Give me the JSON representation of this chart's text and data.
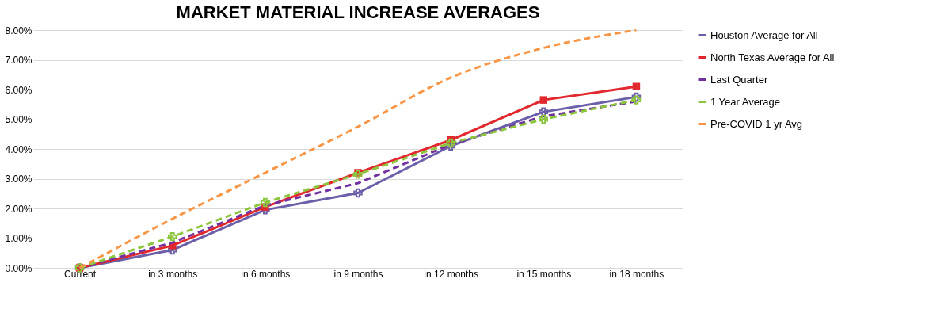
{
  "chart_data": {
    "type": "line",
    "title": "MARKET MATERIAL INCREASE AVERAGES",
    "categories": [
      "Current",
      "in 3 months",
      "in 6 months",
      "in 9 months",
      "in 12 months",
      "in 15 months",
      "in 18 months"
    ],
    "series": [
      {
        "name": "Houston Average for All",
        "color": "#6a5fa8",
        "marker": "cross",
        "line_style": "solid",
        "values": [
          0,
          0.6,
          1.95,
          2.52,
          4.1,
          5.25,
          5.75
        ]
      },
      {
        "name": "North Texas Average for All",
        "color": "#e0282e",
        "marker": "square",
        "line_style": "solid",
        "values": [
          0,
          0.75,
          2.05,
          3.2,
          4.3,
          5.65,
          6.1
        ]
      },
      {
        "name": "Last Quarter",
        "color": "#7030a0",
        "marker": "none",
        "line_style": "dashed",
        "values": [
          0,
          0.85,
          2.1,
          2.85,
          4.15,
          5.1,
          5.6
        ]
      },
      {
        "name": "1 Year Average",
        "color": "#8cc63f",
        "marker": "cross",
        "line_style": "dashed",
        "values": [
          0,
          1.05,
          2.2,
          3.15,
          4.2,
          5.0,
          5.65
        ]
      },
      {
        "name": "Pre-COVID  1 yr Avg",
        "color": "#f79646",
        "marker": "none",
        "line_style": "dashed",
        "values": [
          0,
          1.65,
          3.2,
          4.75,
          6.4,
          7.4,
          8.0
        ]
      }
    ],
    "ylim": [
      0,
      8
    ],
    "yticks": [
      {
        "value": 0,
        "label": "0.00%"
      },
      {
        "value": 1,
        "label": "1.00%"
      },
      {
        "value": 2,
        "label": "2.00%"
      },
      {
        "value": 3,
        "label": "3.00%"
      },
      {
        "value": 4,
        "label": "4.00%"
      },
      {
        "value": 5,
        "label": "5.00%"
      },
      {
        "value": 6,
        "label": "6.00%"
      },
      {
        "value": 7,
        "label": "7.00%"
      },
      {
        "value": 8,
        "label": "8.00%"
      }
    ],
    "grid": "y",
    "legend": "right"
  }
}
